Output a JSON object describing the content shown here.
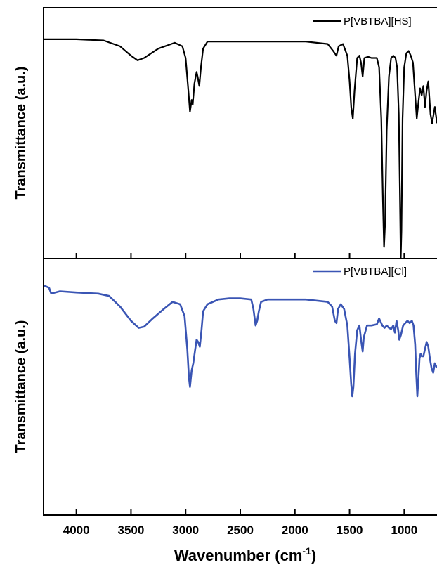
{
  "chart_data": {
    "type": "line",
    "xlabel": "Wavenumber (cm",
    "xlabel_superscript": "-1",
    "xlabel_close": ")",
    "xlim": [
      4300,
      700
    ],
    "x_reversed": true,
    "x_ticks": [
      4000,
      3500,
      3000,
      2500,
      2000,
      1500,
      1000
    ],
    "x_tick_labels": [
      "4000",
      "3500",
      "3000",
      "2500",
      "2000",
      "1500",
      "1000"
    ],
    "grid": false,
    "legend_position": "top-right",
    "panels": [
      {
        "ylabel": "Transmittance (a.u.)",
        "ylim": [
          0,
          100
        ],
        "y_ticks_labeled": false,
        "series": [
          {
            "name": "P[VBTBA][HS]",
            "color": "#000000",
            "points": [
              [
                4300,
                94
              ],
              [
                4000,
                94
              ],
              [
                3750,
                93.5
              ],
              [
                3600,
                91
              ],
              [
                3500,
                87
              ],
              [
                3440,
                85
              ],
              [
                3380,
                86
              ],
              [
                3250,
                90
              ],
              [
                3100,
                92.5
              ],
              [
                3030,
                91
              ],
              [
                3000,
                86
              ],
              [
                2975,
                72
              ],
              [
                2960,
                63
              ],
              [
                2945,
                68
              ],
              [
                2935,
                66
              ],
              [
                2920,
                75
              ],
              [
                2900,
                80
              ],
              [
                2890,
                78
              ],
              [
                2875,
                74
              ],
              [
                2860,
                82
              ],
              [
                2840,
                90
              ],
              [
                2800,
                93
              ],
              [
                2600,
                93
              ],
              [
                2300,
                93
              ],
              [
                1900,
                93
              ],
              [
                1700,
                92
              ],
              [
                1650,
                89
              ],
              [
                1620,
                87
              ],
              [
                1600,
                91
              ],
              [
                1560,
                92
              ],
              [
                1520,
                87
              ],
              [
                1500,
                76
              ],
              [
                1485,
                65
              ],
              [
                1470,
                60
              ],
              [
                1455,
                72
              ],
              [
                1430,
                86
              ],
              [
                1410,
                87
              ],
              [
                1395,
                84
              ],
              [
                1380,
                78
              ],
              [
                1365,
                86
              ],
              [
                1330,
                86.5
              ],
              [
                1300,
                86
              ],
              [
                1250,
                86
              ],
              [
                1230,
                82
              ],
              [
                1210,
                60
              ],
              [
                1195,
                25
              ],
              [
                1185,
                5
              ],
              [
                1175,
                15
              ],
              [
                1160,
                55
              ],
              [
                1140,
                78
              ],
              [
                1120,
                86
              ],
              [
                1100,
                87
              ],
              [
                1080,
                86
              ],
              [
                1065,
                82
              ],
              [
                1050,
                62
              ],
              [
                1040,
                30
              ],
              [
                1032,
                0
              ],
              [
                1025,
                12
              ],
              [
                1015,
                60
              ],
              [
                1000,
                82
              ],
              [
                980,
                88
              ],
              [
                960,
                89
              ],
              [
                940,
                87
              ],
              [
                920,
                84
              ],
              [
                900,
                70
              ],
              [
                885,
                60
              ],
              [
                870,
                67
              ],
              [
                855,
                73
              ],
              [
                840,
                70
              ],
              [
                825,
                74
              ],
              [
                810,
                65
              ],
              [
                795,
                72
              ],
              [
                780,
                76
              ],
              [
                760,
                62
              ],
              [
                745,
                58
              ],
              [
                720,
                65
              ],
              [
                700,
                58
              ]
            ]
          }
        ]
      },
      {
        "ylabel": "Transmittance (a.u.)",
        "ylim": [
          0,
          100
        ],
        "y_ticks_labeled": false,
        "series": [
          {
            "name": "P[VBTBA][Cl]",
            "color": "#3a55b4",
            "points": [
              [
                4300,
                97
              ],
              [
                4250,
                96
              ],
              [
                4230,
                93.5
              ],
              [
                4150,
                94.5
              ],
              [
                4000,
                94
              ],
              [
                3800,
                93.5
              ],
              [
                3700,
                92.5
              ],
              [
                3600,
                88
              ],
              [
                3500,
                82
              ],
              [
                3430,
                79
              ],
              [
                3380,
                79.5
              ],
              [
                3300,
                83
              ],
              [
                3200,
                87
              ],
              [
                3120,
                90
              ],
              [
                3050,
                89
              ],
              [
                3010,
                84
              ],
              [
                2985,
                70
              ],
              [
                2970,
                58
              ],
              [
                2960,
                54
              ],
              [
                2945,
                61
              ],
              [
                2930,
                64
              ],
              [
                2915,
                69
              ],
              [
                2900,
                74
              ],
              [
                2885,
                73
              ],
              [
                2870,
                71
              ],
              [
                2855,
                78
              ],
              [
                2840,
                86
              ],
              [
                2800,
                89
              ],
              [
                2700,
                91
              ],
              [
                2600,
                91.5
              ],
              [
                2500,
                91.5
              ],
              [
                2400,
                91
              ],
              [
                2380,
                87
              ],
              [
                2360,
                80
              ],
              [
                2345,
                82
              ],
              [
                2330,
                86
              ],
              [
                2310,
                90
              ],
              [
                2250,
                91
              ],
              [
                2100,
                91
              ],
              [
                1900,
                91
              ],
              [
                1700,
                90
              ],
              [
                1660,
                88
              ],
              [
                1635,
                82
              ],
              [
                1620,
                81
              ],
              [
                1605,
                87
              ],
              [
                1580,
                89
              ],
              [
                1550,
                87
              ],
              [
                1520,
                80
              ],
              [
                1500,
                66
              ],
              [
                1485,
                55
              ],
              [
                1475,
                50
              ],
              [
                1465,
                54
              ],
              [
                1450,
                68
              ],
              [
                1430,
                78
              ],
              [
                1410,
                80
              ],
              [
                1395,
                74
              ],
              [
                1380,
                69
              ],
              [
                1370,
                75
              ],
              [
                1340,
                80
              ],
              [
                1300,
                80
              ],
              [
                1250,
                80.5
              ],
              [
                1230,
                83
              ],
              [
                1220,
                82
              ],
              [
                1200,
                80
              ],
              [
                1180,
                79
              ],
              [
                1160,
                80
              ],
              [
                1140,
                79
              ],
              [
                1120,
                78.5
              ],
              [
                1100,
                80
              ],
              [
                1085,
                77
              ],
              [
                1070,
                82
              ],
              [
                1055,
                78
              ],
              [
                1045,
                74
              ],
              [
                1030,
                76
              ],
              [
                1010,
                80
              ],
              [
                990,
                81
              ],
              [
                970,
                82
              ],
              [
                950,
                81
              ],
              [
                930,
                82
              ],
              [
                915,
                80
              ],
              [
                900,
                72
              ],
              [
                890,
                60
              ],
              [
                880,
                50
              ],
              [
                870,
                58
              ],
              [
                860,
                66
              ],
              [
                850,
                68
              ],
              [
                840,
                67
              ],
              [
                825,
                67
              ],
              [
                810,
                70
              ],
              [
                795,
                73
              ],
              [
                780,
                71
              ],
              [
                765,
                66
              ],
              [
                750,
                62
              ],
              [
                735,
                60
              ],
              [
                720,
                64
              ],
              [
                700,
                62
              ]
            ]
          }
        ]
      }
    ]
  }
}
